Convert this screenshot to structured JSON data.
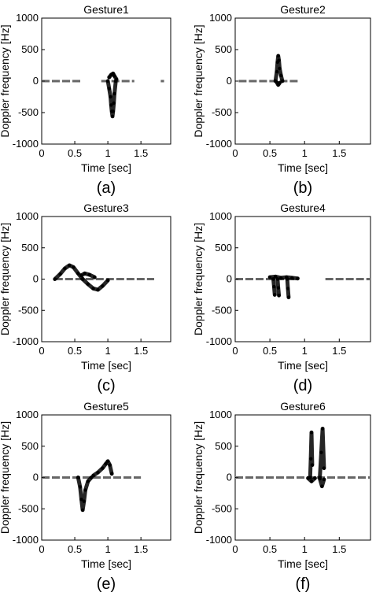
{
  "chart_data": [
    {
      "type": "spectrogram",
      "title": "Gesture1",
      "caption": "(a)",
      "xlabel": "Time [sec]",
      "ylabel": "Doppler frequency [Hz]",
      "xlim": [
        0,
        1.95
      ],
      "ylim": [
        -1000,
        1000
      ],
      "xticks": [
        "0",
        "0.5",
        "1",
        "1.5"
      ],
      "yticks": [
        "1000",
        "500",
        "0",
        "-500",
        "-1000"
      ],
      "traces": [
        {
          "x": [
            1.0,
            1.02,
            1.04,
            1.05,
            1.06,
            1.07,
            1.08,
            1.09,
            1.1,
            1.12
          ],
          "y": [
            0,
            -120,
            -250,
            -380,
            -480,
            -560,
            -480,
            -350,
            -200,
            0
          ]
        },
        {
          "x": [
            1.02,
            1.05,
            1.08,
            1.1,
            1.13
          ],
          "y": [
            60,
            100,
            120,
            80,
            30
          ]
        }
      ],
      "baseline": [
        [
          0,
          0.6
        ],
        [
          0.9,
          1.4
        ],
        [
          1.8,
          1.85
        ]
      ]
    },
    {
      "type": "spectrogram",
      "title": "Gesture2",
      "caption": "(b)",
      "xlabel": "Time [sec]",
      "ylabel": "Doppler frequency [Hz]",
      "xlim": [
        0,
        1.95
      ],
      "ylim": [
        -1000,
        1000
      ],
      "xticks": [
        "0",
        "0.5",
        "1",
        "1.5"
      ],
      "yticks": [
        "1000",
        "500",
        "0",
        "-500",
        "-1000"
      ],
      "traces": [
        {
          "x": [
            0.58,
            0.6,
            0.61,
            0.62,
            0.63,
            0.64,
            0.66,
            0.68
          ],
          "y": [
            0,
            150,
            300,
            400,
            330,
            200,
            90,
            0
          ]
        },
        {
          "x": [
            0.6,
            0.62,
            0.64
          ],
          "y": [
            -20,
            -60,
            -30
          ]
        }
      ],
      "baseline": [
        [
          0.05,
          0.9
        ]
      ]
    },
    {
      "type": "spectrogram",
      "title": "Gesture3",
      "caption": "(c)",
      "xlabel": "Time [sec]",
      "ylabel": "Doppler frequency [Hz]",
      "xlim": [
        0,
        1.95
      ],
      "ylim": [
        -1000,
        1000
      ],
      "xticks": [
        "0",
        "0.5",
        "1",
        "1.5"
      ],
      "yticks": [
        "1000",
        "500",
        "0",
        "-500",
        "-1000"
      ],
      "traces": [
        {
          "x": [
            0.2,
            0.28,
            0.35,
            0.42,
            0.48,
            0.55,
            0.62
          ],
          "y": [
            0,
            80,
            170,
            220,
            190,
            90,
            0
          ]
        },
        {
          "x": [
            0.62,
            0.7,
            0.78,
            0.85,
            0.92,
            1.0
          ],
          "y": [
            0,
            -80,
            -150,
            -170,
            -110,
            -20
          ]
        },
        {
          "x": [
            0.6,
            0.65,
            0.72,
            0.8
          ],
          "y": [
            60,
            90,
            70,
            30
          ]
        }
      ],
      "baseline": [
        [
          0.2,
          1.7
        ]
      ]
    },
    {
      "type": "spectrogram",
      "title": "Gesture4",
      "caption": "(d)",
      "xlabel": "Time [sec]",
      "ylabel": "Doppler frequency [Hz]",
      "xlim": [
        0,
        1.95
      ],
      "ylim": [
        -1000,
        1000
      ],
      "xticks": [
        "0",
        "0.5",
        "1",
        "1.5"
      ],
      "yticks": [
        "1000",
        "500",
        "0",
        "-500",
        "-1000"
      ],
      "traces": [
        {
          "x": [
            0.55,
            0.56,
            0.57
          ],
          "y": [
            0,
            -120,
            -250
          ]
        },
        {
          "x": [
            0.61,
            0.62,
            0.63
          ],
          "y": [
            0,
            -140,
            -260
          ]
        },
        {
          "x": [
            0.75,
            0.76,
            0.77
          ],
          "y": [
            0,
            -150,
            -290
          ]
        },
        {
          "x": [
            0.5,
            0.58,
            0.66,
            0.74,
            0.82,
            0.9
          ],
          "y": [
            30,
            40,
            20,
            30,
            20,
            10
          ]
        }
      ],
      "baseline": [
        [
          0,
          0.9
        ],
        [
          1.3,
          1.95
        ]
      ]
    },
    {
      "type": "spectrogram",
      "title": "Gesture5",
      "caption": "(e)",
      "xlabel": "Time [sec]",
      "ylabel": "Doppler frequency [Hz]",
      "xlim": [
        0,
        1.95
      ],
      "ylim": [
        -1000,
        1000
      ],
      "xticks": [
        "0",
        "0.5",
        "1",
        "1.5"
      ],
      "yticks": [
        "1000",
        "500",
        "0",
        "-500",
        "-1000"
      ],
      "traces": [
        {
          "x": [
            0.55,
            0.58,
            0.6,
            0.62,
            0.64,
            0.66,
            0.7,
            0.75
          ],
          "y": [
            0,
            -150,
            -350,
            -520,
            -380,
            -200,
            -60,
            0
          ]
        },
        {
          "x": [
            0.78,
            0.85,
            0.92,
            0.97,
            1.0,
            1.03,
            1.06
          ],
          "y": [
            30,
            80,
            150,
            220,
            260,
            200,
            60
          ]
        }
      ],
      "baseline": [
        [
          0,
          1.5
        ]
      ]
    },
    {
      "type": "spectrogram",
      "title": "Gesture6",
      "caption": "(f)",
      "xlabel": "Time [sec]",
      "ylabel": "Doppler frequency [Hz]",
      "xlim": [
        0,
        1.95
      ],
      "ylim": [
        -1000,
        1000
      ],
      "xticks": [
        "0",
        "0.5",
        "1",
        "1.5"
      ],
      "yticks": [
        "1000",
        "500",
        "0",
        "-500",
        "-1000"
      ],
      "traces": [
        {
          "x": [
            1.08,
            1.09,
            1.1,
            1.11
          ],
          "y": [
            0,
            300,
            720,
            200
          ]
        },
        {
          "x": [
            1.22,
            1.24,
            1.26,
            1.28
          ],
          "y": [
            0,
            400,
            780,
            150
          ]
        },
        {
          "x": [
            1.22,
            1.25,
            1.28
          ],
          "y": [
            -20,
            -140,
            -30
          ]
        },
        {
          "x": [
            1.05,
            1.1,
            1.15
          ],
          "y": [
            -10,
            -60,
            -10
          ]
        }
      ],
      "baseline": [
        [
          0,
          1.95
        ]
      ]
    }
  ]
}
